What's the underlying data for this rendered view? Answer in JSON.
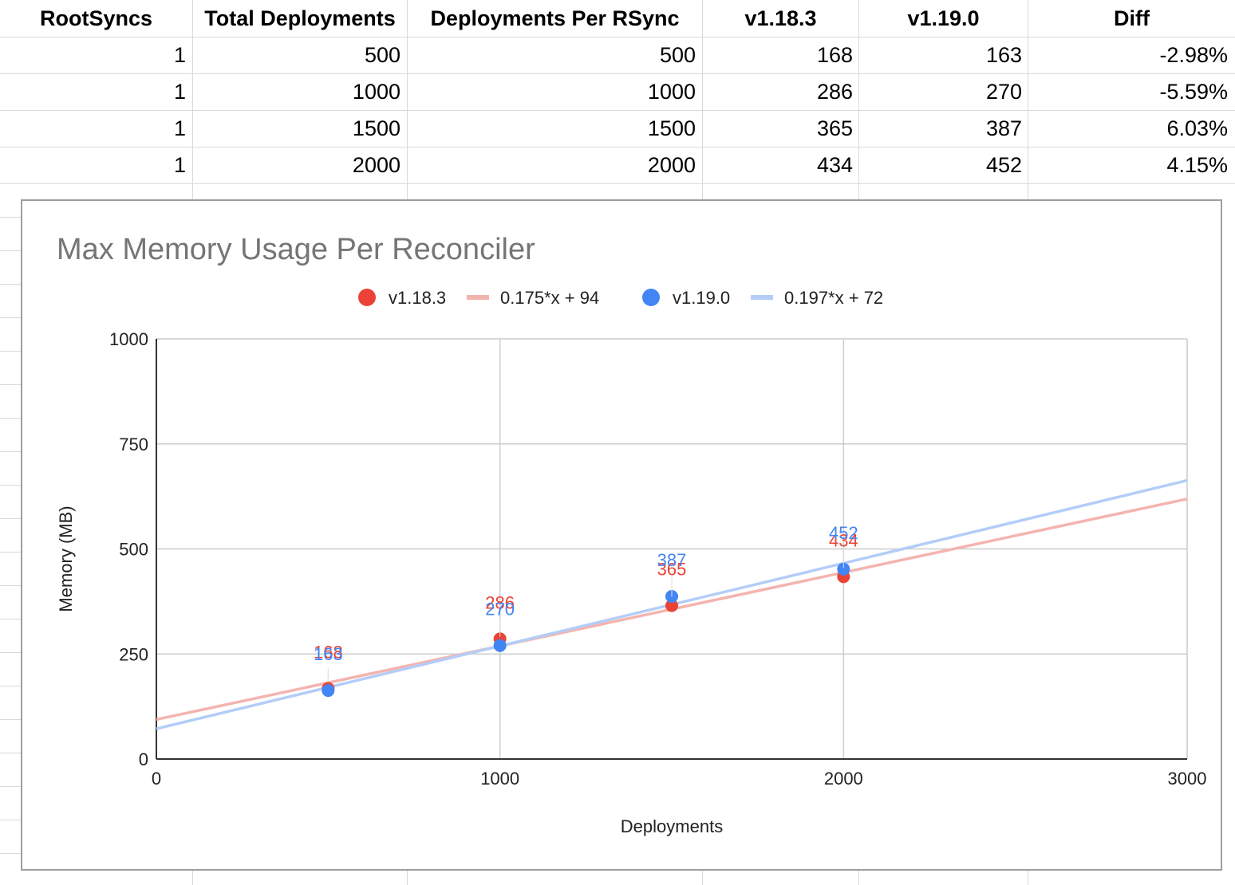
{
  "table": {
    "headers": [
      "RootSyncs",
      "Total Deployments",
      "Deployments Per RSync",
      "v1.18.3",
      "v1.19.0",
      "Diff"
    ],
    "rows": [
      [
        "1",
        "500",
        "500",
        "168",
        "163",
        "-2.98%"
      ],
      [
        "1",
        "1000",
        "1000",
        "286",
        "270",
        "-5.59%"
      ],
      [
        "1",
        "1500",
        "1500",
        "365",
        "387",
        "6.03%"
      ],
      [
        "1",
        "2000",
        "2000",
        "434",
        "452",
        "4.15%"
      ]
    ]
  },
  "chart_data": {
    "type": "scatter",
    "title": "Max Memory Usage Per Reconciler",
    "xlabel": "Deployments",
    "ylabel": "Memory (MB)",
    "xlim": [
      0,
      3000
    ],
    "ylim": [
      0,
      1000
    ],
    "xticks": [
      "0",
      "1000",
      "2000",
      "3000"
    ],
    "yticks": [
      "0",
      "250",
      "500",
      "750",
      "1000"
    ],
    "grid": true,
    "legend_position": "top",
    "series": [
      {
        "name": "v1.18.3",
        "color": "#ea4335",
        "x": [
          500,
          1000,
          1500,
          2000
        ],
        "y": [
          168,
          286,
          365,
          434
        ],
        "labels": [
          "168",
          "286",
          "365",
          "434"
        ],
        "trendline": {
          "name": "0.175*x + 94",
          "slope": 0.175,
          "intercept": 94,
          "color": "#f4b4ae"
        }
      },
      {
        "name": "v1.19.0",
        "color": "#4285f4",
        "x": [
          500,
          1000,
          1500,
          2000
        ],
        "y": [
          163,
          270,
          387,
          452
        ],
        "labels": [
          "163",
          "270",
          "387",
          "452"
        ],
        "trendline": {
          "name": "0.197*x + 72",
          "slope": 0.197,
          "intercept": 72,
          "color": "#b3cdf8"
        }
      }
    ]
  }
}
